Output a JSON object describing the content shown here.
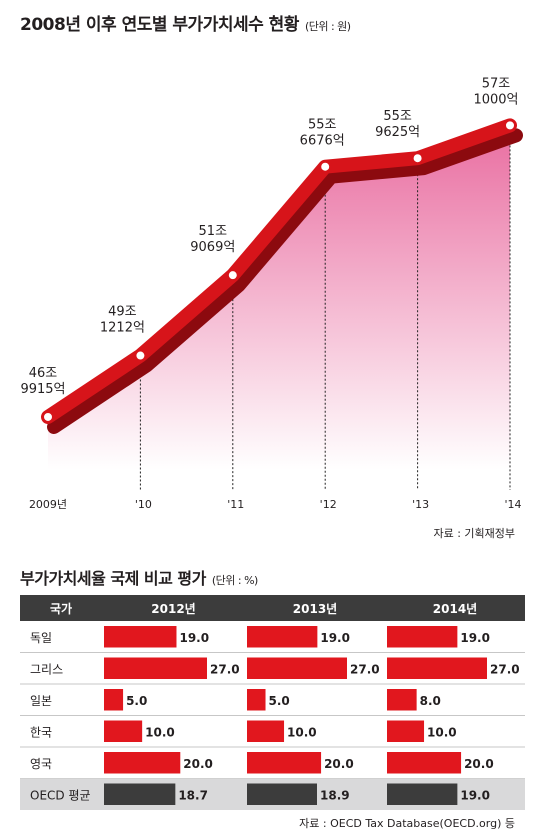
{
  "line_title": "2008년 이후 연도별 부가가치세수 현황",
  "line_unit": "(단위 : 원)",
  "line_source": "자료 : 기획재정부",
  "table_title": "부가가치세율 국제 비교 평가",
  "table_unit": "(단위 : %)",
  "table_source": "자료 : OECD Tax Database(OECD.org) 등",
  "colors": {
    "line": "#d7141a",
    "fill_top": "#e8659b",
    "bar": "#e1171e",
    "bar_avg": "#3c3c3c",
    "header": "#3c3c3c"
  },
  "chart_data": [
    {
      "type": "line",
      "title": "2008년 이후 연도별 부가가치세수 현황",
      "unit": "(단위 : 원)",
      "categories": [
        "2009년",
        "'10",
        "'11",
        "'12",
        "'13",
        "'14"
      ],
      "values": [
        46.9915,
        49.1212,
        51.9069,
        55.6676,
        55.9625,
        57.1
      ],
      "labels": [
        [
          "46조",
          "9915억"
        ],
        [
          "49조",
          "1212억"
        ],
        [
          "51조",
          "9069억"
        ],
        [
          "55조",
          "6676억"
        ],
        [
          "55조",
          "9625억"
        ],
        [
          "57조",
          "1000억"
        ]
      ],
      "ylim": [
        45.5,
        58.5
      ],
      "grid": false
    },
    {
      "type": "table",
      "title": "부가가치세율 국제 비교 평가",
      "unit": "(단위 : %)",
      "header": [
        "국가",
        "2012년",
        "2013년",
        "2014년"
      ],
      "rows": [
        {
          "name": "독일",
          "values": [
            19.0,
            19.0,
            19.0
          ],
          "labels": [
            "19.0",
            "19.0",
            "19.0"
          ],
          "average": false
        },
        {
          "name": "그리스",
          "values": [
            27.0,
            27.0,
            27.0
          ],
          "labels": [
            "27.0",
            "27.0",
            "27.0"
          ],
          "average": false
        },
        {
          "name": "일본",
          "values": [
            5.0,
            5.0,
            8.0
          ],
          "labels": [
            "5.0",
            "5.0",
            "8.0"
          ],
          "average": false
        },
        {
          "name": "한국",
          "values": [
            10.0,
            10.0,
            10.0
          ],
          "labels": [
            "10.0",
            "10.0",
            "10.0"
          ],
          "average": false
        },
        {
          "name": "영국",
          "values": [
            20.0,
            20.0,
            20.0
          ],
          "labels": [
            "20.0",
            "20.0",
            "20.0"
          ],
          "average": false
        },
        {
          "name": "OECD 평균",
          "values": [
            18.7,
            18.9,
            19.0
          ],
          "labels": [
            "18.7",
            "18.9",
            "19.0"
          ],
          "average": true
        }
      ],
      "max": 27
    }
  ]
}
